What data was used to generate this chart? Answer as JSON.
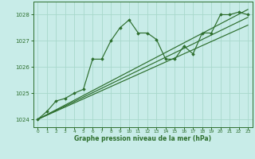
{
  "background_color": "#c8ece8",
  "grid_color": "#a8d8cc",
  "line_color": "#2d6e2d",
  "xlabel": "Graphe pression niveau de la mer (hPa)",
  "ylim": [
    1023.7,
    1028.5
  ],
  "xlim": [
    -0.5,
    23.5
  ],
  "yticks": [
    1024,
    1025,
    1026,
    1027,
    1028
  ],
  "xticks": [
    0,
    1,
    2,
    3,
    4,
    5,
    6,
    7,
    8,
    9,
    10,
    11,
    12,
    13,
    14,
    15,
    16,
    17,
    18,
    19,
    20,
    21,
    22,
    23
  ],
  "straight_lines": [
    {
      "x0": 0,
      "y0": 1024.0,
      "x1": 23,
      "y1": 1028.2
    },
    {
      "x0": 0,
      "y0": 1024.0,
      "x1": 23,
      "y1": 1027.9
    },
    {
      "x0": 0,
      "y0": 1024.0,
      "x1": 23,
      "y1": 1027.6
    }
  ],
  "jagged": [
    [
      0,
      1024.0
    ],
    [
      1,
      1024.3
    ],
    [
      2,
      1024.7
    ],
    [
      3,
      1024.8
    ],
    [
      4,
      1025.0
    ],
    [
      5,
      1025.15
    ],
    [
      6,
      1026.3
    ],
    [
      7,
      1026.3
    ],
    [
      8,
      1027.0
    ],
    [
      9,
      1027.5
    ],
    [
      10,
      1027.8
    ],
    [
      11,
      1027.3
    ],
    [
      12,
      1027.3
    ],
    [
      13,
      1027.05
    ],
    [
      14,
      1026.3
    ],
    [
      15,
      1026.3
    ],
    [
      16,
      1026.8
    ],
    [
      17,
      1026.5
    ],
    [
      18,
      1027.3
    ],
    [
      19,
      1027.3
    ],
    [
      20,
      1028.0
    ],
    [
      21,
      1028.0
    ],
    [
      22,
      1028.1
    ],
    [
      23,
      1028.0
    ]
  ]
}
